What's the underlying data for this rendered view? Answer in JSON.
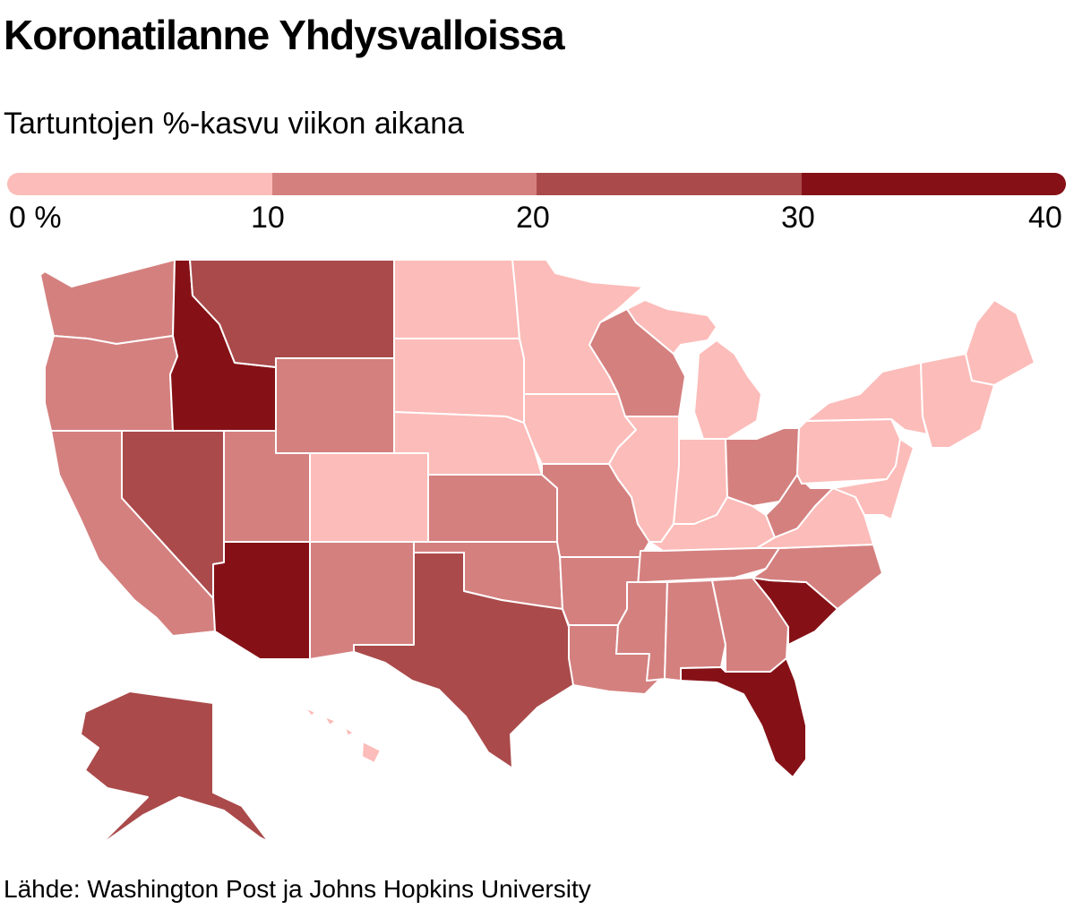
{
  "title": "Koronatilanne Yhdysvalloissa",
  "subtitle": "Tartuntojen %-kasvu viikon aikana",
  "legend": {
    "colors": [
      "#fcbcb9",
      "#d4807f",
      "#aa4a4b",
      "#851116"
    ],
    "ticks": [
      "0 %",
      "10",
      "20",
      "30",
      "40"
    ]
  },
  "source": "Lähde: Washington Post ja Johns Hopkins University",
  "states": [
    {
      "id": "WA",
      "bin": 1
    },
    {
      "id": "OR",
      "bin": 1
    },
    {
      "id": "CA",
      "bin": 1
    },
    {
      "id": "ID",
      "bin": 3
    },
    {
      "id": "NV",
      "bin": 2
    },
    {
      "id": "MT",
      "bin": 2
    },
    {
      "id": "WY",
      "bin": 1
    },
    {
      "id": "UT",
      "bin": 1
    },
    {
      "id": "AZ",
      "bin": 3
    },
    {
      "id": "CO",
      "bin": 0
    },
    {
      "id": "NM",
      "bin": 1
    },
    {
      "id": "ND",
      "bin": 0
    },
    {
      "id": "SD",
      "bin": 0
    },
    {
      "id": "NE",
      "bin": 0
    },
    {
      "id": "KS",
      "bin": 1
    },
    {
      "id": "OK",
      "bin": 1
    },
    {
      "id": "TX",
      "bin": 2
    },
    {
      "id": "MN",
      "bin": 0
    },
    {
      "id": "IA",
      "bin": 0
    },
    {
      "id": "MO",
      "bin": 1
    },
    {
      "id": "AR",
      "bin": 1
    },
    {
      "id": "LA",
      "bin": 1
    },
    {
      "id": "WI",
      "bin": 1
    },
    {
      "id": "IL",
      "bin": 0
    },
    {
      "id": "MI",
      "bin": 0
    },
    {
      "id": "IN",
      "bin": 0
    },
    {
      "id": "OH",
      "bin": 1
    },
    {
      "id": "KY",
      "bin": 0
    },
    {
      "id": "TN",
      "bin": 1
    },
    {
      "id": "MS",
      "bin": 1
    },
    {
      "id": "AL",
      "bin": 1
    },
    {
      "id": "GA",
      "bin": 1
    },
    {
      "id": "FL",
      "bin": 3
    },
    {
      "id": "SC",
      "bin": 3
    },
    {
      "id": "NC",
      "bin": 1
    },
    {
      "id": "VA",
      "bin": 0
    },
    {
      "id": "WV",
      "bin": 1
    },
    {
      "id": "PA",
      "bin": 0
    },
    {
      "id": "NY",
      "bin": 0
    },
    {
      "id": "ME",
      "bin": 0
    },
    {
      "id": "NE_SMALL",
      "bin": 0
    },
    {
      "id": "MIDATL",
      "bin": 0
    },
    {
      "id": "AK",
      "bin": 2
    },
    {
      "id": "HI",
      "bin": 0
    }
  ]
}
